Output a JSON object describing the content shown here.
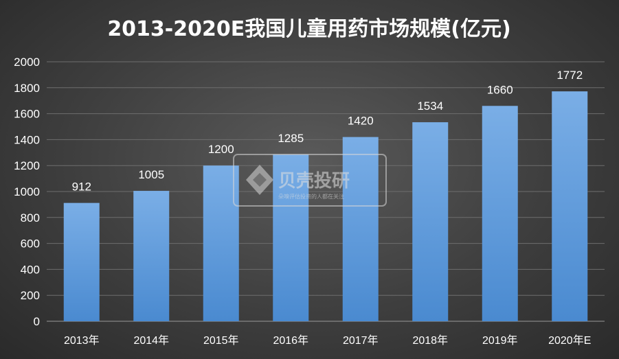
{
  "chart_data": {
    "type": "bar",
    "title": "2013-2020E我国儿童用药市场规模(亿元)",
    "categories": [
      "2013年",
      "2014年",
      "2015年",
      "2016年",
      "2017年",
      "2018年",
      "2019年",
      "2020年E"
    ],
    "values": [
      912,
      1005,
      1200,
      1285,
      1420,
      1534,
      1660,
      1772
    ],
    "ylim": [
      0,
      2000
    ],
    "yticks": [
      0,
      200,
      400,
      600,
      800,
      1000,
      1200,
      1400,
      1600,
      1800,
      2000
    ],
    "grid": true,
    "legend": "none",
    "colors": {
      "bar_top": "#7aaee6",
      "bar_bottom": "#4a8ad0",
      "grid": "#6e6e6e"
    }
  },
  "watermark": {
    "name": "贝壳投研",
    "tagline": "朵嗅评估投资的人都在关注"
  }
}
